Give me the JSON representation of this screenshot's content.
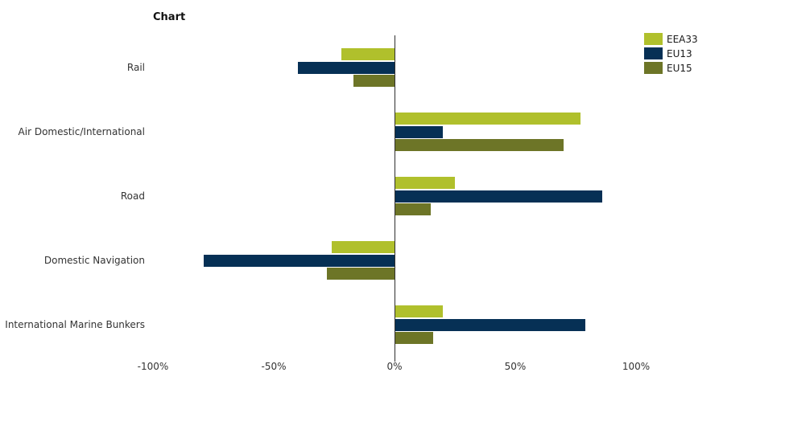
{
  "chart_data": {
    "type": "bar",
    "orientation": "horizontal",
    "title": "Chart",
    "categories": [
      "Rail",
      "Air Domestic/International",
      "Road",
      "Domestic Navigation",
      "International Marine Bunkers"
    ],
    "series": [
      {
        "name": "EEA33",
        "color": "#b0c02c",
        "values": [
          -22,
          77,
          25,
          -26,
          20
        ]
      },
      {
        "name": "EU13",
        "color": "#063055",
        "values": [
          -40,
          20,
          86,
          -79,
          79
        ]
      },
      {
        "name": "EU15",
        "color": "#6d7527",
        "values": [
          -17,
          70,
          15,
          -28,
          16
        ]
      }
    ],
    "x_tick_labels": [
      "-100%",
      "-50%",
      "0%",
      "50%",
      "100%"
    ],
    "x_tick_values": [
      -100,
      -50,
      0,
      50,
      100
    ],
    "xlim": [
      -100,
      100
    ],
    "unit": "%",
    "legend_position": "top-right",
    "grid": false,
    "axis_color": "#2f2f2f"
  }
}
